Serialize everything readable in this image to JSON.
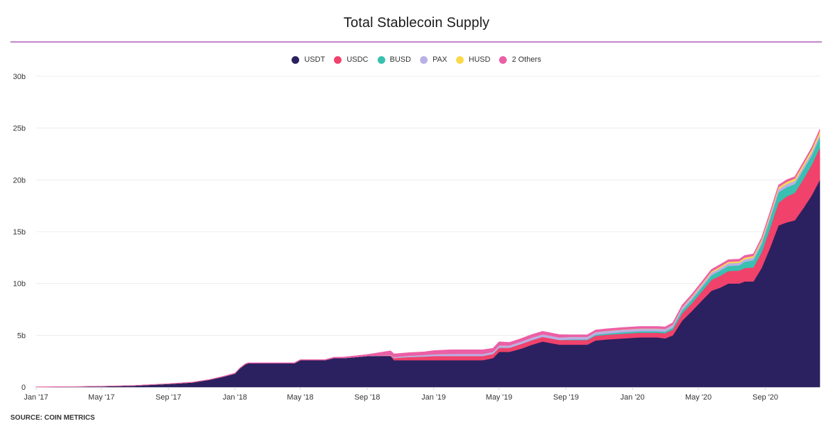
{
  "chart_data": {
    "type": "area",
    "stacked": true,
    "title": "Total Stablecoin Supply",
    "source": "SOURCE: COIN METRICS",
    "legend_position": "top",
    "grid": true,
    "y_unit": "USD",
    "ylim": [
      0,
      30000000000
    ],
    "y_ticks": [
      {
        "value": 0,
        "label": "0"
      },
      {
        "value": 5000000000,
        "label": "5b"
      },
      {
        "value": 10000000000,
        "label": "10b"
      },
      {
        "value": 15000000000,
        "label": "15b"
      },
      {
        "value": 20000000000,
        "label": "20b"
      },
      {
        "value": 25000000000,
        "label": "25b"
      },
      {
        "value": 30000000000,
        "label": "30b"
      }
    ],
    "x_range": [
      "2017-01-01",
      "2020-12-10"
    ],
    "x_ticks": [
      {
        "date": "2017-01-01",
        "label": "Jan '17"
      },
      {
        "date": "2017-05-01",
        "label": "May '17"
      },
      {
        "date": "2017-09-01",
        "label": "Sep '17"
      },
      {
        "date": "2018-01-01",
        "label": "Jan '18"
      },
      {
        "date": "2018-05-01",
        "label": "May '18"
      },
      {
        "date": "2018-09-01",
        "label": "Sep '18"
      },
      {
        "date": "2019-01-01",
        "label": "Jan '19"
      },
      {
        "date": "2019-05-01",
        "label": "May '19"
      },
      {
        "date": "2019-09-01",
        "label": "Sep '19"
      },
      {
        "date": "2020-01-01",
        "label": "Jan '20"
      },
      {
        "date": "2020-05-01",
        "label": "May '20"
      },
      {
        "date": "2020-09-01",
        "label": "Sep '20"
      }
    ],
    "x": [
      "2017-01-01",
      "2017-03-01",
      "2017-05-01",
      "2017-07-01",
      "2017-09-01",
      "2017-10-15",
      "2017-11-15",
      "2017-12-10",
      "2018-01-01",
      "2018-01-10",
      "2018-01-20",
      "2018-01-25",
      "2018-02-01",
      "2018-04-20",
      "2018-05-01",
      "2018-06-15",
      "2018-07-01",
      "2018-07-20",
      "2018-09-01",
      "2018-10-14",
      "2018-10-20",
      "2018-11-15",
      "2018-12-15",
      "2019-01-01",
      "2019-02-01",
      "2019-03-01",
      "2019-04-01",
      "2019-04-20",
      "2019-05-01",
      "2019-05-20",
      "2019-06-10",
      "2019-07-01",
      "2019-07-20",
      "2019-08-20",
      "2019-09-10",
      "2019-10-10",
      "2019-10-25",
      "2019-11-15",
      "2019-12-15",
      "2020-01-15",
      "2020-02-15",
      "2020-03-01",
      "2020-03-15",
      "2020-04-01",
      "2020-04-20",
      "2020-05-10",
      "2020-05-25",
      "2020-06-10",
      "2020-06-25",
      "2020-07-15",
      "2020-07-25",
      "2020-08-10",
      "2020-08-25",
      "2020-09-10",
      "2020-09-25",
      "2020-10-10",
      "2020-10-25",
      "2020-11-10",
      "2020-11-25",
      "2020-12-10"
    ],
    "series": [
      {
        "name": "USDT",
        "color": "#2b2160",
        "values": [
          0.01,
          0.03,
          0.07,
          0.15,
          0.3,
          0.45,
          0.7,
          1.0,
          1.3,
          1.8,
          2.2,
          2.3,
          2.3,
          2.3,
          2.6,
          2.6,
          2.8,
          2.8,
          3.0,
          3.0,
          2.6,
          2.6,
          2.6,
          2.6,
          2.6,
          2.6,
          2.6,
          2.8,
          3.4,
          3.4,
          3.7,
          4.1,
          4.4,
          4.1,
          4.1,
          4.1,
          4.5,
          4.6,
          4.7,
          4.8,
          4.8,
          4.7,
          5.0,
          6.4,
          7.4,
          8.5,
          9.3,
          9.6,
          10.0,
          10.0,
          10.2,
          10.2,
          11.5,
          13.5,
          15.6,
          15.9,
          16.1,
          17.3,
          18.5,
          20.0
        ]
      },
      {
        "name": "USDC",
        "color": "#f0426b",
        "values": [
          0,
          0,
          0,
          0,
          0,
          0,
          0,
          0,
          0,
          0,
          0,
          0,
          0,
          0,
          0,
          0,
          0,
          0,
          0,
          0.05,
          0.2,
          0.3,
          0.35,
          0.4,
          0.4,
          0.4,
          0.4,
          0.4,
          0.4,
          0.4,
          0.45,
          0.45,
          0.45,
          0.45,
          0.45,
          0.45,
          0.45,
          0.45,
          0.45,
          0.45,
          0.45,
          0.5,
          0.55,
          0.7,
          0.75,
          0.9,
          1.05,
          1.15,
          1.2,
          1.25,
          1.3,
          1.35,
          1.5,
          1.9,
          2.2,
          2.5,
          2.65,
          2.8,
          2.95,
          3.1
        ]
      },
      {
        "name": "BUSD",
        "color": "#39c0b0",
        "values": [
          0,
          0,
          0,
          0,
          0,
          0,
          0,
          0,
          0,
          0,
          0,
          0,
          0,
          0,
          0,
          0,
          0,
          0,
          0,
          0,
          0,
          0,
          0,
          0,
          0,
          0,
          0,
          0,
          0,
          0,
          0,
          0,
          0,
          0,
          0.05,
          0.05,
          0.1,
          0.12,
          0.15,
          0.15,
          0.15,
          0.15,
          0.2,
          0.3,
          0.35,
          0.4,
          0.45,
          0.5,
          0.5,
          0.5,
          0.6,
          0.7,
          0.8,
          0.9,
          1.0,
          0.9,
          0.85,
          0.9,
          0.9,
          1.0
        ]
      },
      {
        "name": "PAX",
        "color": "#b9b0e6",
        "values": [
          0,
          0,
          0,
          0,
          0,
          0,
          0,
          0,
          0,
          0,
          0,
          0,
          0,
          0,
          0,
          0,
          0,
          0,
          0,
          0.05,
          0.1,
          0.12,
          0.15,
          0.17,
          0.2,
          0.2,
          0.2,
          0.2,
          0.22,
          0.22,
          0.23,
          0.24,
          0.24,
          0.24,
          0.24,
          0.24,
          0.24,
          0.24,
          0.24,
          0.24,
          0.24,
          0.24,
          0.24,
          0.25,
          0.25,
          0.25,
          0.25,
          0.25,
          0.25,
          0.25,
          0.25,
          0.25,
          0.27,
          0.3,
          0.3,
          0.3,
          0.3,
          0.3,
          0.3,
          0.3
        ]
      },
      {
        "name": "HUSD",
        "color": "#fcd94a",
        "values": [
          0,
          0,
          0,
          0,
          0,
          0,
          0,
          0,
          0,
          0,
          0,
          0,
          0,
          0,
          0,
          0,
          0,
          0,
          0,
          0,
          0,
          0,
          0,
          0,
          0,
          0,
          0,
          0,
          0,
          0,
          0,
          0,
          0,
          0,
          0.01,
          0.01,
          0.02,
          0.02,
          0.02,
          0.02,
          0.02,
          0.02,
          0.03,
          0.05,
          0.08,
          0.1,
          0.12,
          0.14,
          0.15,
          0.15,
          0.15,
          0.16,
          0.17,
          0.18,
          0.2,
          0.21,
          0.22,
          0.25,
          0.27,
          0.3
        ]
      },
      {
        "name": "2 Others",
        "color": "#ec5fa6",
        "values": [
          0.02,
          0.02,
          0.02,
          0.02,
          0.03,
          0.03,
          0.03,
          0.04,
          0.05,
          0.05,
          0.05,
          0.05,
          0.05,
          0.05,
          0.05,
          0.05,
          0.08,
          0.1,
          0.15,
          0.4,
          0.3,
          0.3,
          0.3,
          0.35,
          0.4,
          0.4,
          0.4,
          0.35,
          0.35,
          0.3,
          0.3,
          0.3,
          0.3,
          0.28,
          0.2,
          0.2,
          0.2,
          0.2,
          0.2,
          0.2,
          0.2,
          0.2,
          0.2,
          0.2,
          0.2,
          0.2,
          0.2,
          0.2,
          0.2,
          0.2,
          0.2,
          0.2,
          0.2,
          0.2,
          0.2,
          0.2,
          0.2,
          0.2,
          0.2,
          0.2
        ]
      }
    ],
    "values_unit_multiplier": 1000000000
  }
}
